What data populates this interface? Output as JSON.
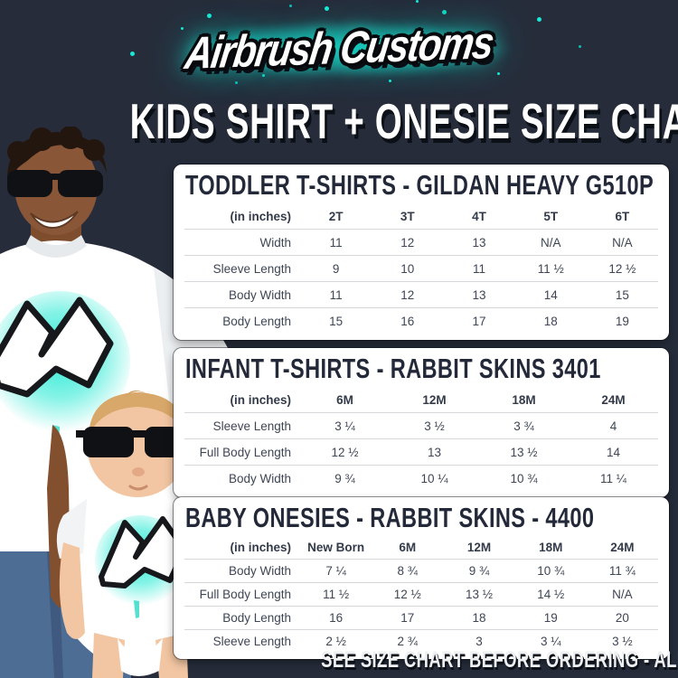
{
  "page": {
    "brand_logo_text": "Airbrush Customs",
    "title": "KIDS SHIRT + ONESIE SIZE CHART",
    "footer": "SEE SIZE CHART BEFORE ORDERING - ALL ITEMS HAND-PAINTED TO ORDER"
  },
  "colors": {
    "background": "#262c3a",
    "card": "#ffffff",
    "heading_text": "#232939",
    "accent_glow": "#18e8d5",
    "divider": "#d6d8db"
  },
  "photos": {
    "boy": "boy-in-sunglasses-wearing-white-graffiti-t-shirt",
    "baby": "baby-in-sunglasses-wearing-white-graffiti-onesie"
  },
  "tables": [
    {
      "title": "TODDLER T-SHIRTS - GILDAN HEAVY G510P",
      "unit_label": "(in inches)",
      "columns": [
        "2T",
        "3T",
        "4T",
        "5T",
        "6T"
      ],
      "rows": [
        {
          "label": "Width",
          "values": [
            "11",
            "12",
            "13",
            "N/A",
            "N/A"
          ]
        },
        {
          "label": "Sleeve Length",
          "values": [
            "9",
            "10",
            "11",
            "11 ½",
            "12 ½"
          ]
        },
        {
          "label": "Body Width",
          "values": [
            "11",
            "12",
            "13",
            "14",
            "15"
          ]
        },
        {
          "label": "Body Length",
          "values": [
            "15",
            "16",
            "17",
            "18",
            "19"
          ]
        }
      ]
    },
    {
      "title": "INFANT T-SHIRTS - RABBIT SKINS 3401",
      "unit_label": "(in inches)",
      "columns": [
        "6M",
        "12M",
        "18M",
        "24M"
      ],
      "rows": [
        {
          "label": "Sleeve Length",
          "values": [
            "3 ¼",
            "3 ½",
            "3 ¾",
            "4"
          ]
        },
        {
          "label": "Full Body Length",
          "values": [
            "12 ½",
            "13",
            "13 ½",
            "14"
          ]
        },
        {
          "label": "Body Width",
          "values": [
            "9 ¾",
            "10 ¼",
            "10 ¾",
            "11 ¼"
          ]
        }
      ]
    },
    {
      "title": "BABY ONESIES - RABBIT SKINS - 4400",
      "unit_label": "(in inches)",
      "columns": [
        "New Born",
        "6M",
        "12M",
        "18M",
        "24M"
      ],
      "rows": [
        {
          "label": "Body Width",
          "values": [
            "7 ¼",
            "8 ¾",
            "9 ¾",
            "10 ¾",
            "11 ¾"
          ]
        },
        {
          "label": "Full Body Length",
          "values": [
            "11 ½",
            "12 ½",
            "13 ½",
            "14 ½",
            "N/A"
          ]
        },
        {
          "label": "Body Length",
          "values": [
            "16",
            "17",
            "18",
            "19",
            "20"
          ]
        },
        {
          "label": "Sleeve Length",
          "values": [
            "2 ½",
            "2 ¾",
            "3",
            "3 ¼",
            "3 ½"
          ]
        }
      ]
    }
  ]
}
